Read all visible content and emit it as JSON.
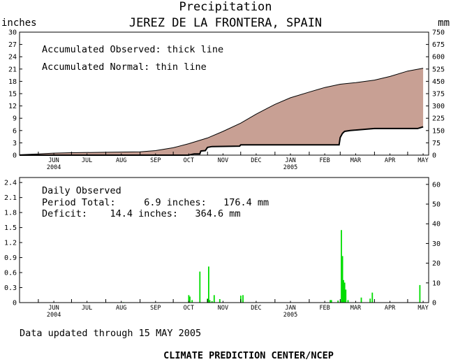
{
  "header": {
    "title": "Precipitation",
    "subtitle": "JEREZ DE LA FRONTERA, SPAIN",
    "left_unit": "inches",
    "right_unit": "mm"
  },
  "top_panel": {
    "legend_observed": "Accumulated Observed: thick line",
    "legend_normal": "Accumulated Normal: thin line"
  },
  "bottom_panel": {
    "label_daily": "Daily Observed",
    "label_total": "Period Total:     6.9 inches:   176.4 mm",
    "label_deficit": "Deficit:    14.4 inches:   364.6 mm"
  },
  "footer": {
    "updated": "Data updated through 15 MAY 2005",
    "credit": "CLIMATE PREDICTION CENTER/NCEP"
  },
  "colors": {
    "deficit_fill": "#c8a094",
    "bar": "#00dd00",
    "line": "#000000"
  },
  "chart_data": [
    {
      "type": "area",
      "series": [
        {
          "name": "Accumulated Normal",
          "x": [
            "2004-05-15",
            "2004-06-01",
            "2004-06-15",
            "2004-07-01",
            "2004-08-01",
            "2004-09-01",
            "2004-09-15",
            "2004-10-01",
            "2004-10-15",
            "2004-11-01",
            "2004-11-15",
            "2004-12-01",
            "2004-12-15",
            "2005-01-01",
            "2005-01-15",
            "2005-02-01",
            "2005-02-15",
            "2005-03-01",
            "2005-03-15",
            "2005-04-01",
            "2005-04-15",
            "2005-05-01",
            "2005-05-15"
          ],
          "values": [
            0.1,
            0.3,
            0.5,
            0.6,
            0.7,
            0.8,
            1.1,
            1.8,
            2.8,
            4.2,
            5.8,
            7.8,
            10.0,
            12.4,
            14.0,
            15.4,
            16.5,
            17.3,
            17.7,
            18.3,
            19.2,
            20.5,
            21.2
          ]
        },
        {
          "name": "Accumulated Observed",
          "x": [
            "2004-05-15",
            "2004-06-01",
            "2004-07-01",
            "2004-08-01",
            "2004-09-01",
            "2004-10-01",
            "2004-10-15",
            "2004-10-18",
            "2004-10-20",
            "2004-10-25",
            "2004-10-26",
            "2004-10-30",
            "2004-11-01",
            "2004-11-05",
            "2004-11-30",
            "2004-12-01",
            "2005-02-28",
            "2005-03-01",
            "2005-03-03",
            "2005-03-05",
            "2005-03-10",
            "2005-04-01",
            "2005-05-10",
            "2005-05-15"
          ],
          "values": [
            0.0,
            0.0,
            0.0,
            0.0,
            0.0,
            0.0,
            0.0,
            0.2,
            0.3,
            0.3,
            1.0,
            1.1,
            1.9,
            2.1,
            2.2,
            2.5,
            2.5,
            4.3,
            5.3,
            5.8,
            6.0,
            6.5,
            6.5,
            6.9
          ]
        }
      ],
      "xlabel": "",
      "ylabel": "inches",
      "ylabel_right": "mm",
      "xlim": [
        "2004-05-15",
        "2005-05-20"
      ],
      "ylim": [
        0,
        30
      ],
      "yticks": [
        0,
        3,
        6,
        9,
        12,
        15,
        18,
        21,
        24,
        27,
        30
      ],
      "yticks_right": [
        0,
        75,
        150,
        225,
        300,
        375,
        450,
        525,
        600,
        675,
        750
      ],
      "xtick_labels": [
        "JUN",
        "JUL",
        "AUG",
        "SEP",
        "OCT",
        "NOV",
        "DEC",
        "JAN",
        "FEB",
        "MAR",
        "APR",
        "MAY"
      ],
      "year_labels": [
        "2004",
        "2005"
      ],
      "grid": false
    },
    {
      "type": "bar",
      "series": [
        {
          "name": "Daily Observed",
          "x": [
            "2004-08-17",
            "2004-10-15",
            "2004-10-16",
            "2004-10-18",
            "2004-10-25",
            "2004-11-01",
            "2004-11-02",
            "2004-11-03",
            "2004-11-05",
            "2004-11-07",
            "2004-11-12",
            "2004-12-01",
            "2004-12-03",
            "2005-02-20",
            "2005-02-21",
            "2005-02-27",
            "2005-03-02",
            "2005-03-03",
            "2005-03-04",
            "2005-03-05",
            "2005-03-06",
            "2005-03-08",
            "2005-03-20",
            "2005-03-28",
            "2005-03-30",
            "2005-05-12"
          ],
          "values": [
            0.01,
            0.15,
            0.12,
            0.05,
            0.62,
            0.08,
            0.72,
            0.05,
            0.03,
            0.15,
            0.07,
            0.14,
            0.15,
            0.05,
            0.05,
            0.04,
            1.45,
            0.93,
            0.45,
            0.4,
            0.26,
            0.05,
            0.1,
            0.08,
            0.2,
            0.35
          ]
        }
      ],
      "xlabel": "",
      "ylabel": "inches",
      "ylabel_right": "mm",
      "xlim": [
        "2004-05-15",
        "2005-05-20"
      ],
      "ylim": [
        0,
        2.5
      ],
      "yticks": [
        0,
        0.3,
        0.6,
        0.9,
        1.2,
        1.5,
        1.8,
        2.1,
        2.4
      ],
      "yticks_right": [
        0,
        10,
        20,
        30,
        40,
        50,
        60
      ],
      "xtick_labels": [
        "JUN",
        "JUL",
        "AUG",
        "SEP",
        "OCT",
        "NOV",
        "DEC",
        "JAN",
        "FEB",
        "MAR",
        "APR",
        "MAY"
      ],
      "year_labels": [
        "2004",
        "2005"
      ],
      "grid": false
    }
  ]
}
